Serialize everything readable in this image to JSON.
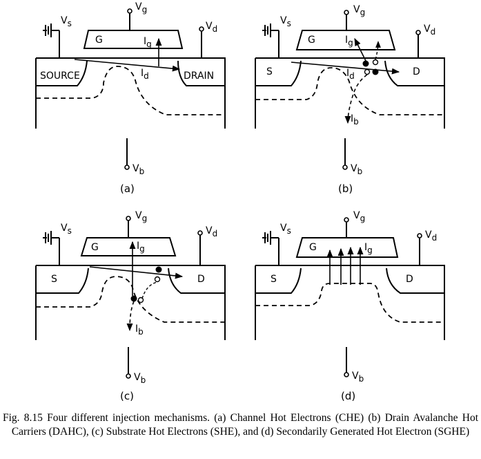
{
  "panels": [
    {
      "id": "a",
      "caption": "(a)",
      "source_label": "SOURCE",
      "drain_label": "DRAIN",
      "gate_label": "G",
      "vs": "V",
      "vs_sub": "s",
      "vg": "V",
      "vg_sub": "g",
      "vd": "V",
      "vd_sub": "d",
      "vb": "V",
      "vb_sub": "b",
      "ig": "I",
      "ig_sub": "g",
      "id_label": "I",
      "id_sub": "d"
    },
    {
      "id": "b",
      "caption": "(b)",
      "source_label": "S",
      "drain_label": "D",
      "gate_label": "G",
      "vs": "V",
      "vs_sub": "s",
      "vg": "V",
      "vg_sub": "g",
      "vd": "V",
      "vd_sub": "d",
      "vb": "V",
      "vb_sub": "b",
      "ig": "I",
      "ig_sub": "g",
      "id_label": "I",
      "id_sub": "d",
      "ib": "I",
      "ib_sub": "b"
    },
    {
      "id": "c",
      "caption": "(c)",
      "source_label": "S",
      "drain_label": "D",
      "gate_label": "G",
      "vs": "V",
      "vs_sub": "s",
      "vg": "V",
      "vg_sub": "g",
      "vd": "V",
      "vd_sub": "d",
      "vb": "V",
      "vb_sub": "b",
      "ig": "I",
      "ig_sub": "g",
      "ib": "I",
      "ib_sub": "b"
    },
    {
      "id": "d",
      "caption": "(d)",
      "source_label": "S",
      "drain_label": "D",
      "gate_label": "G",
      "vs": "V",
      "vs_sub": "s",
      "vg": "V",
      "vg_sub": "g",
      "vd": "V",
      "vd_sub": "d",
      "vb": "V",
      "vb_sub": "b",
      "ig": "I",
      "ig_sub": "g"
    }
  ],
  "caption": "Fig. 8.15 Four different injection mechanisms. (a) Channel Hot Electrons (CHE) (b) Drain Avalanche Hot Carriers (DAHC), (c) Substrate Hot Electrons (SHE), and (d) Secondarily Generated Hot Electron (SGHE)"
}
